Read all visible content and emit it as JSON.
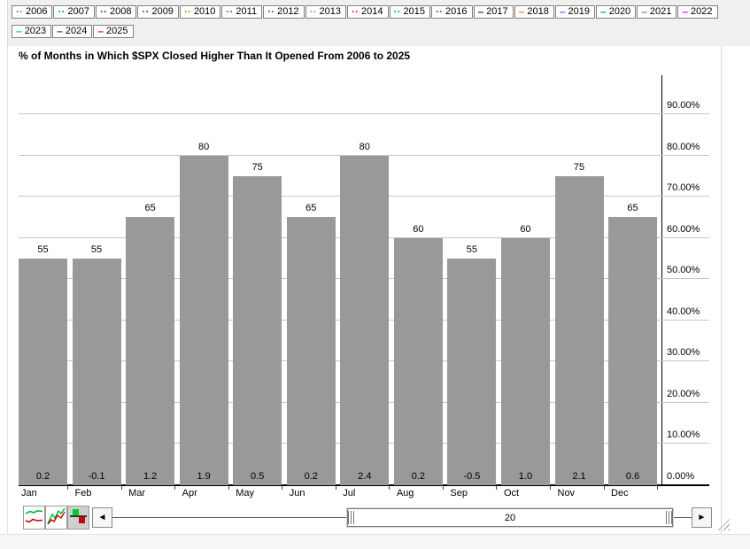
{
  "legend": {
    "row1_count": 17,
    "years": [
      {
        "label": "2006",
        "marker": "··",
        "color": "#cc44cc"
      },
      {
        "label": "2007",
        "marker": "··",
        "color": "#00aa44"
      },
      {
        "label": "2008",
        "marker": "··",
        "color": "#333399"
      },
      {
        "label": "2009",
        "marker": "··",
        "color": "#993333"
      },
      {
        "label": "2010",
        "marker": "··",
        "color": "#ee7700"
      },
      {
        "label": "2011",
        "marker": "··",
        "color": "#8844cc"
      },
      {
        "label": "2012",
        "marker": "··",
        "color": "#008888"
      },
      {
        "label": "2013",
        "marker": "··",
        "color": "#999999"
      },
      {
        "label": "2014",
        "marker": "··",
        "color": "#ee00bb"
      },
      {
        "label": "2015",
        "marker": "··",
        "color": "#00bb44"
      },
      {
        "label": "2016",
        "marker": "··",
        "color": "#4444dd"
      },
      {
        "label": "2017",
        "marker": "–",
        "color": "#880000"
      },
      {
        "label": "2018",
        "marker": "–",
        "color": "#ff7722"
      },
      {
        "label": "2019",
        "marker": "–",
        "color": "#9944dd"
      },
      {
        "label": "2020",
        "marker": "–",
        "color": "#009999"
      },
      {
        "label": "2021",
        "marker": "–",
        "color": "#888888"
      },
      {
        "label": "2022",
        "marker": "–",
        "color": "#ff00ff"
      },
      {
        "label": "2023",
        "marker": "–",
        "color": "#00dd33"
      },
      {
        "label": "2024",
        "marker": "–",
        "color": "#3333cc"
      },
      {
        "label": "2025",
        "marker": "–",
        "color": "#ee1111"
      }
    ]
  },
  "title": "% of Months in Which $SPX Closed Higher Than It Opened From 2006 to 2025",
  "chart_data": {
    "type": "bar",
    "title": "% of Months in Which $SPX Closed Higher Than It Opened From 2006 to 2025",
    "categories": [
      "Jan",
      "Feb",
      "Mar",
      "Apr",
      "May",
      "Jun",
      "Jul",
      "Aug",
      "Sep",
      "Oct",
      "Nov",
      "Dec"
    ],
    "series": [
      {
        "name": "pct-months-closed-higher",
        "values": [
          55,
          55,
          65,
          80,
          75,
          65,
          80,
          60,
          55,
          60,
          75,
          65
        ]
      },
      {
        "name": "bottom-value-labels",
        "values": [
          "0.2",
          "-0.1",
          "1.2",
          "1.9",
          "0.5",
          "0.2",
          "2.4",
          "0.2",
          "-0.5",
          "1.0",
          "2.1",
          "0.6"
        ]
      }
    ],
    "bar_color": "#999999",
    "xlabel": "",
    "ylabel": "",
    "ylim": [
      0,
      100
    ],
    "grid": true,
    "axis_side": "right",
    "legend_position": "top",
    "y_ticks": [
      {
        "value": 0,
        "label": "0.00%"
      },
      {
        "value": 10,
        "label": "10.00%"
      },
      {
        "value": 20,
        "label": "20.00%"
      },
      {
        "value": 30,
        "label": "30.00%"
      },
      {
        "value": 40,
        "label": "40.00%"
      },
      {
        "value": 50,
        "label": "50.00%"
      },
      {
        "value": 60,
        "label": "60.00%"
      },
      {
        "value": 70,
        "label": "70.00%"
      },
      {
        "value": 80,
        "label": "80.00%"
      },
      {
        "value": 90,
        "label": "90.00%"
      }
    ]
  },
  "toolbar": {
    "icons": [
      "line-chart-icon",
      "zigzag-chart-icon",
      "bar-chart-icon"
    ],
    "selected_icon": "bar-chart-icon",
    "left_arrow": "◄",
    "right_arrow": "►",
    "scroll_value": "20"
  }
}
